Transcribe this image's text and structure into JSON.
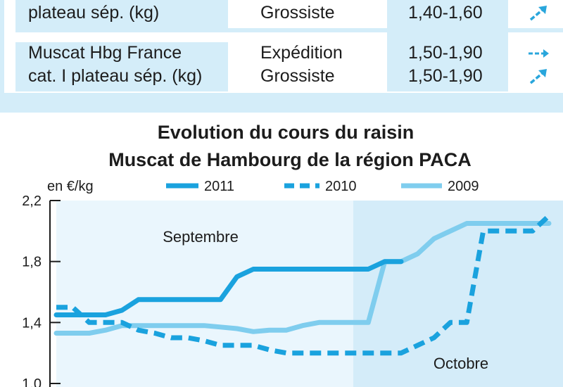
{
  "table": {
    "rows": [
      {
        "product": [
          "plateau sép. (kg)"
        ],
        "stages": [
          "Grossiste"
        ],
        "prices": [
          "1,40-1,60"
        ],
        "trends": [
          "up-right-arrow-icon"
        ]
      },
      {
        "product": [
          "Muscat Hbg France",
          "cat. I plateau sép. (kg)"
        ],
        "stages": [
          "Expédition",
          "Grossiste"
        ],
        "prices": [
          "1,50-1,90",
          "1,50-1,90"
        ],
        "trends": [
          "right-arrow-icon",
          "up-right-arrow-icon"
        ]
      }
    ],
    "accent_color": "#29a6dc",
    "band_color": "#d4edf9"
  },
  "chart_data": {
    "type": "line",
    "title": "Evolution du cours du raisin",
    "subtitle": "Muscat de Hambourg de la région PACA",
    "ylabel": "en €/kg",
    "ylim": [
      1.0,
      2.2
    ],
    "yticks": [
      1.0,
      1.4,
      1.8,
      2.2
    ],
    "ytick_labels": [
      "1,0",
      "1,4",
      "1,8",
      "2,2"
    ],
    "x_range": [
      1,
      31
    ],
    "annotations": [
      "Septembre",
      "Octobre"
    ],
    "grid": false,
    "legend_position": "top",
    "series": [
      {
        "name": "2011",
        "style": "solid",
        "color": "#1aa2de",
        "x": [
          1,
          2,
          3,
          4,
          5,
          6,
          7,
          8,
          9,
          10,
          11,
          12,
          13,
          14,
          15,
          16,
          17,
          18,
          19,
          20,
          21,
          22
        ],
        "y": [
          1.45,
          1.45,
          1.45,
          1.45,
          1.48,
          1.55,
          1.55,
          1.55,
          1.55,
          1.55,
          1.55,
          1.7,
          1.75,
          1.75,
          1.75,
          1.75,
          1.75,
          1.75,
          1.75,
          1.75,
          1.8,
          1.8
        ]
      },
      {
        "name": "2010",
        "style": "dashed",
        "color": "#1aa2de",
        "x": [
          1,
          2,
          3,
          4,
          5,
          6,
          7,
          8,
          9,
          10,
          11,
          12,
          13,
          14,
          15,
          16,
          17,
          18,
          19,
          20,
          21,
          22,
          23,
          24,
          25,
          26,
          27,
          28,
          29,
          30,
          31
        ],
        "y": [
          1.5,
          1.5,
          1.4,
          1.4,
          1.4,
          1.35,
          1.33,
          1.3,
          1.3,
          1.28,
          1.25,
          1.25,
          1.25,
          1.22,
          1.2,
          1.2,
          1.2,
          1.2,
          1.2,
          1.2,
          1.2,
          1.2,
          1.25,
          1.3,
          1.4,
          1.4,
          2.0,
          2.0,
          2.0,
          2.0,
          2.1
        ]
      },
      {
        "name": "2009",
        "style": "solid",
        "color": "#7fcdee",
        "x": [
          1,
          2,
          3,
          4,
          5,
          6,
          7,
          8,
          9,
          10,
          11,
          12,
          13,
          14,
          15,
          16,
          17,
          18,
          19,
          20,
          21,
          22,
          23,
          24,
          25,
          26,
          27,
          28,
          29,
          30,
          31
        ],
        "y": [
          1.33,
          1.33,
          1.33,
          1.35,
          1.38,
          1.38,
          1.38,
          1.38,
          1.38,
          1.38,
          1.37,
          1.36,
          1.34,
          1.35,
          1.35,
          1.38,
          1.4,
          1.4,
          1.4,
          1.4,
          1.8,
          1.8,
          1.85,
          1.95,
          2.0,
          2.05,
          2.05,
          2.05,
          2.05,
          2.05,
          2.05
        ]
      }
    ]
  }
}
